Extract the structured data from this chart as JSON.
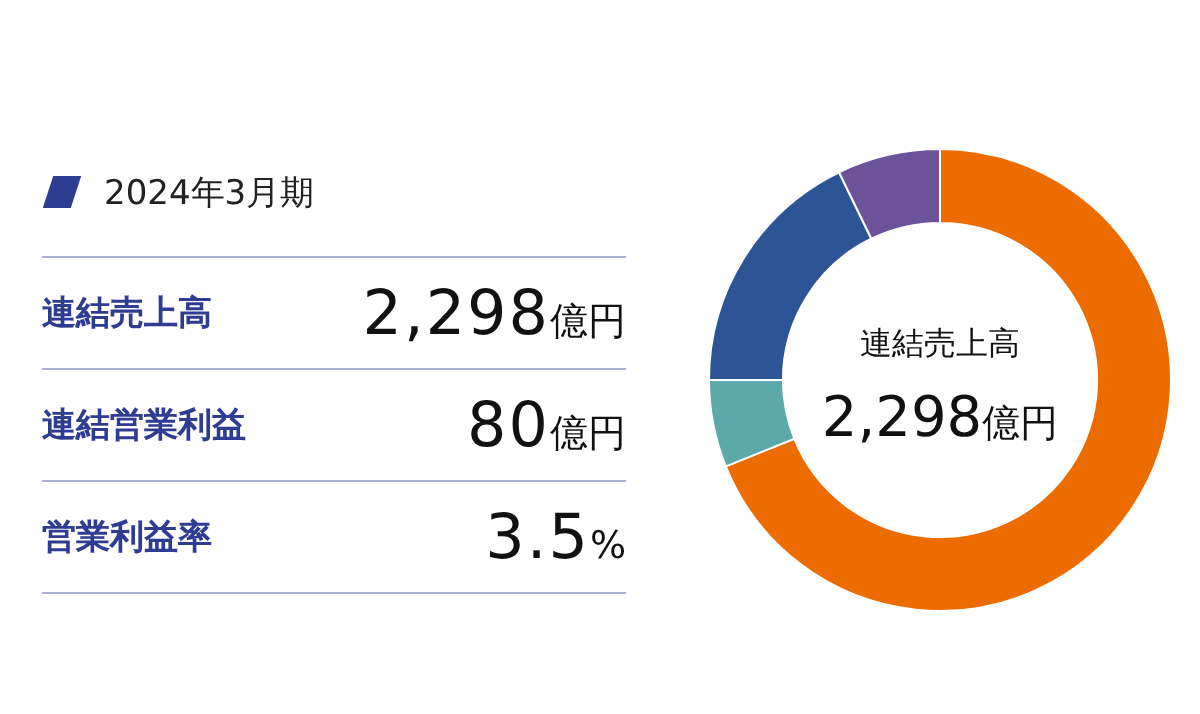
{
  "chart_data": [
    {
      "type": "other",
      "title": "2024年3月期",
      "annotations": [
        "連結売上高",
        "2,298億円",
        "連結営業利益",
        "80億円",
        "営業利益率",
        "3.5%"
      ]
    },
    {
      "type": "donut",
      "categories": [
        null,
        null,
        null,
        null
      ],
      "values": [
        68.9,
        6.1,
        17.8,
        7.2
      ],
      "colors": [
        "#ec6c00",
        "#5ba9a8",
        "#2d5595",
        "#6b5399"
      ],
      "annotations": [
        "連結売上高",
        "2,298億円"
      ]
    }
  ]
}
